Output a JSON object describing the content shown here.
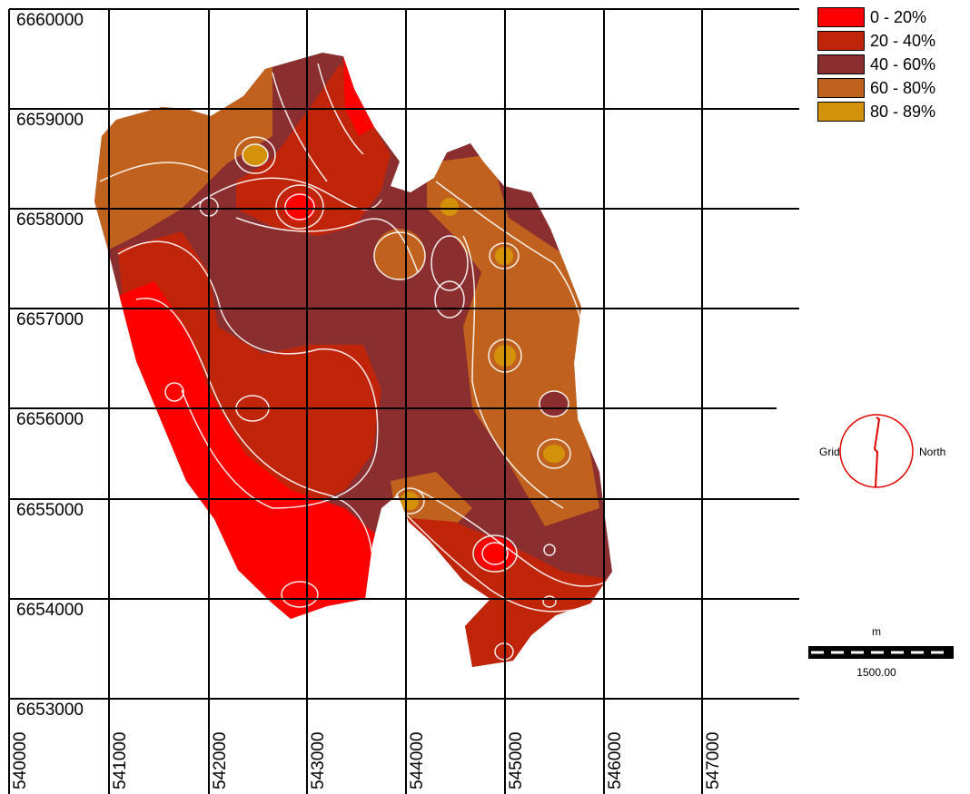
{
  "map": {
    "y_labels": [
      "6660000",
      "6659000",
      "6658000",
      "6657000",
      "6656000",
      "6655000",
      "6654000",
      "6653000"
    ],
    "x_labels": [
      "540000",
      "541000",
      "542000",
      "543000",
      "544000",
      "545000",
      "546000",
      "547000"
    ]
  },
  "legend": {
    "items": [
      {
        "label": "0 - 20%",
        "color": "#ff0000"
      },
      {
        "label": "20 - 40%",
        "color": "#c0250a"
      },
      {
        "label": "40 - 60%",
        "color": "#8b2e30"
      },
      {
        "label": "60 - 80%",
        "color": "#c0621e"
      },
      {
        "label": "80 - 89%",
        "color": "#d4920a"
      }
    ]
  },
  "north_arrow": {
    "left_label": "Grid",
    "right_label": "North",
    "color": "#e00000"
  },
  "scale_bar": {
    "unit": "m",
    "value": "1500.00"
  }
}
